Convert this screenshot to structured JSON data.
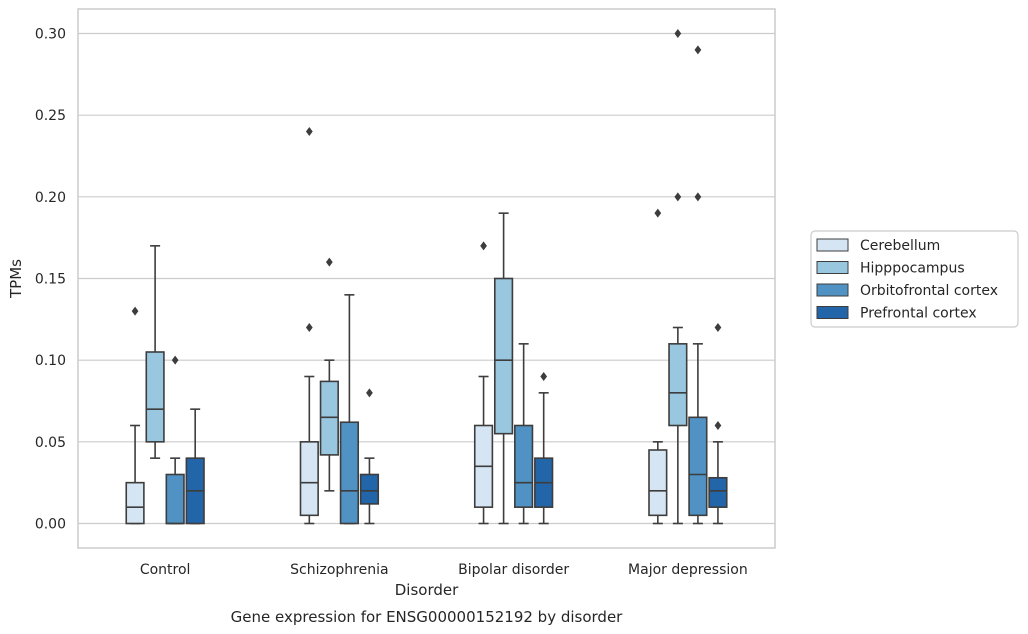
{
  "caption": "Gene expression for ENSG00000152192 by disorder",
  "colors": {
    "Cerebellum": "#d6e5f4",
    "Hipppocampus": "#9ac7e0",
    "Orbitofrontal cortex": "#4f92c3",
    "Prefrontal cortex": "#2365a9",
    "line": "#3d3d3d",
    "grid": "#cccccc",
    "frame": "#cccccc"
  },
  "chart_data": {
    "type": "boxplot",
    "xlabel": "Disorder",
    "ylabel": "TPMs",
    "ylim": [
      -0.015,
      0.315
    ],
    "yticks": [
      0.0,
      0.05,
      0.1,
      0.15,
      0.2,
      0.25,
      0.3
    ],
    "ytick_labels": [
      "0.00",
      "0.05",
      "0.10",
      "0.15",
      "0.20",
      "0.25",
      "0.30"
    ],
    "grid": true,
    "legend_position": "right",
    "categories": [
      "Control",
      "Schizophrenia",
      "Bipolar disorder",
      "Major depression"
    ],
    "series": [
      {
        "name": "Cerebellum",
        "boxes": [
          {
            "q1": 0.0,
            "median": 0.01,
            "q3": 0.025,
            "whislo": 0.0,
            "whishi": 0.06,
            "fliers": [
              0.13
            ]
          },
          {
            "q1": 0.005,
            "median": 0.025,
            "q3": 0.05,
            "whislo": 0.0,
            "whishi": 0.09,
            "fliers": [
              0.12,
              0.24
            ]
          },
          {
            "q1": 0.01,
            "median": 0.035,
            "q3": 0.06,
            "whislo": 0.0,
            "whishi": 0.09,
            "fliers": [
              0.17
            ]
          },
          {
            "q1": 0.005,
            "median": 0.02,
            "q3": 0.045,
            "whislo": 0.0,
            "whishi": 0.05,
            "fliers": [
              0.19
            ]
          }
        ]
      },
      {
        "name": "Hipppocampus",
        "boxes": [
          {
            "q1": 0.05,
            "median": 0.07,
            "q3": 0.105,
            "whislo": 0.04,
            "whishi": 0.17,
            "fliers": []
          },
          {
            "q1": 0.042,
            "median": 0.065,
            "q3": 0.087,
            "whislo": 0.02,
            "whishi": 0.1,
            "fliers": [
              0.16
            ]
          },
          {
            "q1": 0.055,
            "median": 0.1,
            "q3": 0.15,
            "whislo": 0.0,
            "whishi": 0.19,
            "fliers": []
          },
          {
            "q1": 0.06,
            "median": 0.08,
            "q3": 0.11,
            "whislo": 0.0,
            "whishi": 0.12,
            "fliers": [
              0.2,
              0.3
            ]
          }
        ]
      },
      {
        "name": "Orbitofrontal cortex",
        "boxes": [
          {
            "q1": 0.0,
            "median": 0.0,
            "q3": 0.03,
            "whislo": 0.0,
            "whishi": 0.04,
            "fliers": [
              0.1
            ]
          },
          {
            "q1": 0.0,
            "median": 0.02,
            "q3": 0.062,
            "whislo": 0.0,
            "whishi": 0.14,
            "fliers": []
          },
          {
            "q1": 0.01,
            "median": 0.025,
            "q3": 0.06,
            "whislo": 0.0,
            "whishi": 0.11,
            "fliers": []
          },
          {
            "q1": 0.005,
            "median": 0.03,
            "q3": 0.065,
            "whislo": 0.0,
            "whishi": 0.11,
            "fliers": [
              0.2,
              0.29
            ]
          }
        ]
      },
      {
        "name": "Prefrontal cortex",
        "boxes": [
          {
            "q1": 0.0,
            "median": 0.02,
            "q3": 0.04,
            "whislo": 0.0,
            "whishi": 0.07,
            "fliers": []
          },
          {
            "q1": 0.012,
            "median": 0.02,
            "q3": 0.03,
            "whislo": 0.0,
            "whishi": 0.04,
            "fliers": [
              0.08
            ]
          },
          {
            "q1": 0.01,
            "median": 0.025,
            "q3": 0.04,
            "whislo": 0.0,
            "whishi": 0.08,
            "fliers": [
              0.09
            ]
          },
          {
            "q1": 0.01,
            "median": 0.02,
            "q3": 0.028,
            "whislo": 0.0,
            "whishi": 0.05,
            "fliers": [
              0.06,
              0.12
            ]
          }
        ]
      }
    ]
  }
}
